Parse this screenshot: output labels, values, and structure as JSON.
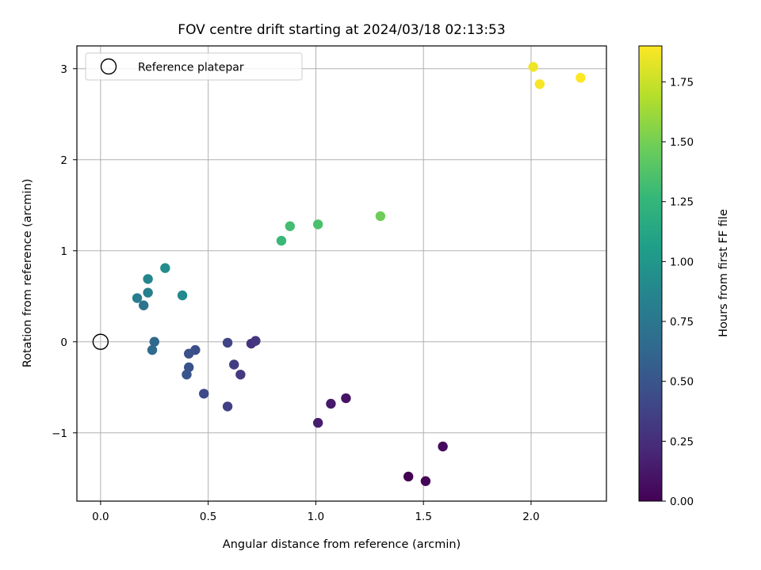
{
  "chart_data": {
    "type": "scatter",
    "title": "FOV centre drift starting at 2024/03/18 02:13:53",
    "xlabel": "Angular distance from reference (arcmin)",
    "ylabel": "Rotation from reference (arcmin)",
    "xlim": [
      -0.11,
      2.35
    ],
    "ylim": [
      -1.75,
      3.25
    ],
    "xticks": [
      0.0,
      0.5,
      1.0,
      1.5,
      2.0
    ],
    "xtick_labels": [
      "0.0",
      "0.5",
      "1.0",
      "1.5",
      "2.0"
    ],
    "yticks": [
      -1,
      0,
      1,
      2,
      3
    ],
    "ytick_labels": [
      "−1",
      "0",
      "1",
      "2",
      "3"
    ],
    "grid": true,
    "legend": {
      "placement": "top-left",
      "entries": [
        {
          "label": "Reference platepar",
          "marker": "open-circle",
          "x": 0,
          "y": 0
        }
      ]
    },
    "colorbar": {
      "label": "Hours from first FF file",
      "colormap": "viridis",
      "range": [
        0.0,
        1.9
      ],
      "ticks": [
        0.0,
        0.25,
        0.5,
        0.75,
        1.0,
        1.25,
        1.5,
        1.75
      ],
      "tick_labels": [
        "0.00",
        "0.25",
        "0.50",
        "0.75",
        "1.00",
        "1.25",
        "1.50",
        "1.75"
      ]
    },
    "points": [
      {
        "x": 1.43,
        "y": -1.48,
        "c": 0.0
      },
      {
        "x": 1.51,
        "y": -1.53,
        "c": 0.02
      },
      {
        "x": 1.59,
        "y": -1.15,
        "c": 0.05
      },
      {
        "x": 1.14,
        "y": -0.62,
        "c": 0.1
      },
      {
        "x": 1.07,
        "y": -0.68,
        "c": 0.13
      },
      {
        "x": 1.01,
        "y": -0.89,
        "c": 0.15
      },
      {
        "x": 0.7,
        "y": -0.02,
        "c": 0.28
      },
      {
        "x": 0.72,
        "y": 0.01,
        "c": 0.3
      },
      {
        "x": 0.65,
        "y": -0.36,
        "c": 0.32
      },
      {
        "x": 0.62,
        "y": -0.25,
        "c": 0.34
      },
      {
        "x": 0.59,
        "y": -0.71,
        "c": 0.36
      },
      {
        "x": 0.59,
        "y": -0.01,
        "c": 0.38
      },
      {
        "x": 0.48,
        "y": -0.57,
        "c": 0.42
      },
      {
        "x": 0.44,
        "y": -0.09,
        "c": 0.45
      },
      {
        "x": 0.41,
        "y": -0.13,
        "c": 0.47
      },
      {
        "x": 0.41,
        "y": -0.28,
        "c": 0.48
      },
      {
        "x": 0.4,
        "y": -0.36,
        "c": 0.5
      },
      {
        "x": 0.25,
        "y": 0.0,
        "c": 0.63
      },
      {
        "x": 0.24,
        "y": -0.09,
        "c": 0.66
      },
      {
        "x": 0.2,
        "y": 0.4,
        "c": 0.72
      },
      {
        "x": 0.17,
        "y": 0.48,
        "c": 0.8
      },
      {
        "x": 0.22,
        "y": 0.54,
        "c": 0.83
      },
      {
        "x": 0.22,
        "y": 0.69,
        "c": 0.87
      },
      {
        "x": 0.38,
        "y": 0.51,
        "c": 0.9
      },
      {
        "x": 0.3,
        "y": 0.81,
        "c": 0.93
      },
      {
        "x": 0.84,
        "y": 1.11,
        "c": 1.28
      },
      {
        "x": 0.88,
        "y": 1.27,
        "c": 1.32
      },
      {
        "x": 1.01,
        "y": 1.29,
        "c": 1.35
      },
      {
        "x": 1.3,
        "y": 1.38,
        "c": 1.48
      },
      {
        "x": 2.01,
        "y": 3.02,
        "c": 1.86
      },
      {
        "x": 2.04,
        "y": 2.83,
        "c": 1.88
      },
      {
        "x": 2.23,
        "y": 2.9,
        "c": 1.9
      }
    ]
  }
}
